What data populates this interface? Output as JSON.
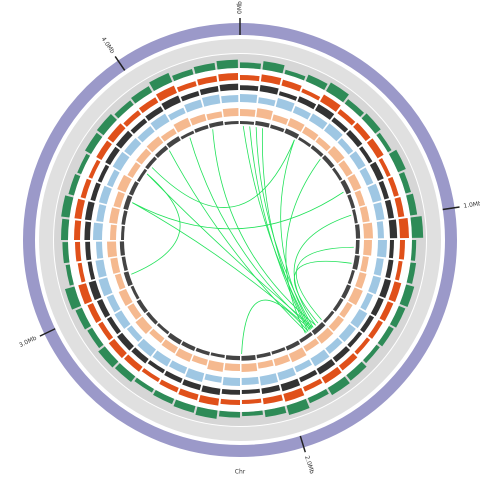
{
  "chart_data": {
    "type": "circos",
    "xlabel": "Chr",
    "xlim": [
      0,
      4.42
    ],
    "xticks": [
      {
        "value": 0,
        "label": "0Mb"
      },
      {
        "value": 1,
        "label": "1.0Mb"
      },
      {
        "value": 2,
        "label": "2.0Mb"
      },
      {
        "value": 3,
        "label": "3.0Mb"
      },
      {
        "value": 4,
        "label": "4.0Mb"
      }
    ],
    "ring_color": "#9b99c9",
    "tracks": [
      {
        "color": "#2e8b57",
        "ylim": [
          0,
          1
        ],
        "values": [
          0.4,
          0.6,
          0.3,
          0.5,
          0.7,
          0.4,
          0.5,
          0.3,
          0.6,
          0.4,
          0.5,
          0.8,
          0.3,
          0.4,
          0.6,
          0.5,
          0.4,
          0.3,
          0.5,
          0.6,
          0.4,
          0.7,
          0.5,
          0.3,
          0.4,
          0.6,
          0.5,
          0.4,
          0.3,
          0.5,
          0.6,
          0.4,
          0.5,
          0.7,
          0.3,
          0.4,
          0.5,
          0.6,
          0.4,
          0.3,
          0.5,
          0.6,
          0.4,
          0.5,
          0.7,
          0.4,
          0.5,
          0.6
        ]
      },
      {
        "color": "#e0501a",
        "ylim": [
          0,
          1
        ],
        "values": [
          0.5,
          0.7,
          0.6,
          0.4,
          0.8,
          0.5,
          0.6,
          0.7,
          0.4,
          0.5,
          0.6,
          0.9,
          0.5,
          0.4,
          0.7,
          0.6,
          0.5,
          0.4,
          0.6,
          0.7,
          0.5,
          0.8,
          0.6,
          0.4,
          0.5,
          0.7,
          0.6,
          0.5,
          0.4,
          0.6,
          0.7,
          0.5,
          0.6,
          0.8,
          0.4,
          0.5,
          0.6,
          0.7,
          0.5,
          0.4,
          0.6,
          0.7,
          0.5,
          0.6,
          0.8,
          0.5,
          0.6,
          0.7
        ]
      },
      {
        "color": "#333333",
        "ylim": [
          0,
          1
        ],
        "values": [
          0.6,
          0.8,
          0.5,
          0.7,
          0.9,
          0.6,
          0.7,
          0.5,
          0.8,
          0.6,
          0.7,
          0.9,
          0.5,
          0.6,
          0.8,
          0.7,
          0.6,
          0.5,
          0.7,
          0.8,
          0.6,
          0.9,
          0.7,
          0.5,
          0.6,
          0.8,
          0.7,
          0.6,
          0.5,
          0.7,
          0.8,
          0.6,
          0.7,
          0.9,
          0.5,
          0.6,
          0.7,
          0.8,
          0.6,
          0.5,
          0.7,
          0.8,
          0.6,
          0.7,
          0.9,
          0.6,
          0.7,
          0.8
        ]
      },
      {
        "color": "#9fc7e3",
        "ylim": [
          0,
          1
        ],
        "values": [
          0.8,
          0.6,
          0.9,
          0.7,
          0.8,
          0.9,
          0.6,
          0.8,
          0.7,
          0.9,
          0.8,
          0.6,
          0.9,
          0.7,
          0.8,
          0.6,
          0.9,
          0.8,
          0.7,
          0.9,
          0.6,
          0.8,
          0.9,
          0.7,
          0.8,
          0.6,
          0.9,
          0.7,
          0.8,
          0.9,
          0.6,
          0.8,
          0.7,
          0.9,
          0.8,
          0.6,
          0.9,
          0.7,
          0.8,
          0.6,
          0.9,
          0.8,
          0.7,
          0.9,
          0.6,
          0.8,
          0.9,
          0.7
        ]
      },
      {
        "color": "#f5b98f",
        "ylim": [
          0,
          1
        ],
        "values": [
          0.7,
          0.9,
          0.6,
          0.8,
          0.7,
          0.6,
          0.9,
          0.7,
          0.8,
          0.6,
          0.7,
          0.9,
          0.8,
          0.6,
          0.7,
          0.9,
          0.6,
          0.7,
          0.8,
          0.6,
          0.9,
          0.7,
          0.6,
          0.8,
          0.7,
          0.9,
          0.6,
          0.8,
          0.7,
          0.6,
          0.9,
          0.7,
          0.8,
          0.6,
          0.7,
          0.9,
          0.6,
          0.8,
          0.7,
          0.9,
          0.6,
          0.7,
          0.8,
          0.6,
          0.9,
          0.7,
          0.6,
          0.8
        ]
      },
      {
        "color": "#444444",
        "ylim": [
          0,
          1
        ],
        "values": [
          0.5,
          0.7,
          0.6,
          0.8,
          0.5,
          0.6,
          0.7,
          0.5,
          0.8,
          0.6,
          0.5,
          0.7,
          0.6,
          0.8,
          0.5,
          0.7,
          0.6,
          0.5,
          0.8,
          0.6,
          0.7,
          0.5,
          0.6,
          0.8,
          0.7,
          0.5,
          0.6,
          0.7,
          0.8,
          0.5,
          0.6,
          0.7,
          0.5,
          0.8,
          0.6,
          0.7,
          0.5,
          0.6,
          0.8,
          0.7,
          0.5,
          0.6,
          0.7,
          0.8,
          0.5,
          0.6,
          0.7,
          0.5
        ]
      }
    ],
    "link_color": "#22e25a",
    "links": [
      [
        0.02,
        1.74
      ],
      [
        0.06,
        1.76
      ],
      [
        0.1,
        1.72
      ],
      [
        0.14,
        1.75
      ],
      [
        0.35,
        1.73
      ],
      [
        0.55,
        1.78
      ],
      [
        0.95,
        1.7
      ],
      [
        1.15,
        1.65
      ],
      [
        1.25,
        1.68
      ],
      [
        2.2,
        1.76
      ],
      [
        3.55,
        1.74
      ],
      [
        3.75,
        1.72
      ],
      [
        3.95,
        1.77
      ],
      [
        4.1,
        1.73
      ],
      [
        4.25,
        1.7
      ],
      [
        3.1,
        3.75
      ],
      [
        3.55,
        0.8
      ],
      [
        3.8,
        0.35
      ]
    ]
  }
}
